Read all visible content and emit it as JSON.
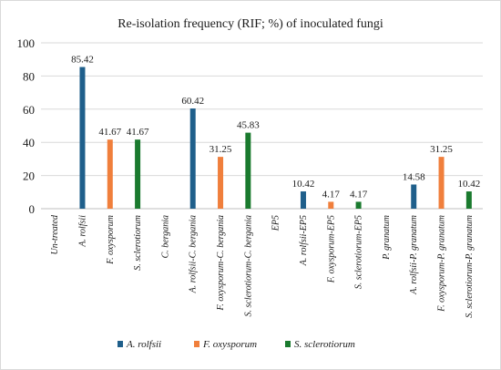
{
  "chart_data": {
    "type": "bar",
    "title": "Re-isolation frequency (RIF; %) of inoculated fungi",
    "xlabel": "",
    "ylabel": "",
    "ylim": [
      0,
      100
    ],
    "yticks": [
      0,
      20,
      40,
      60,
      80,
      100
    ],
    "grid": true,
    "legend_position": "bottom",
    "categories": [
      "Un-treated",
      "A. rolfsii",
      "F. oxysporum",
      "S. sclerotiorum",
      "C. bergania",
      "A. rolfsii-C. bergania",
      "F. oxysporum-C. bergania",
      "S. sclerotiorum-C. bergania",
      "EP5",
      "A. rolfsii-EP5",
      "F. oxysporum-EP5",
      "S. sclerotiorum-EP5",
      "P. granatum",
      "A. rolfsii-P. granatum",
      "F. oxysporum-P. granatum",
      "S. sclerotiorum-P. granatum"
    ],
    "series": [
      {
        "name": "A. rolfsii",
        "color": "#1f5f8b",
        "values": [
          null,
          85.42,
          null,
          null,
          null,
          60.42,
          null,
          null,
          null,
          10.42,
          null,
          null,
          null,
          14.58,
          null,
          null
        ],
        "labels": [
          "",
          "85.42",
          "",
          "",
          "",
          "60.42",
          "",
          "",
          "",
          "10.42",
          "",
          "",
          "",
          "14.58",
          "",
          ""
        ]
      },
      {
        "name": "F. oxysporum",
        "color": "#f07f3c",
        "values": [
          null,
          null,
          41.67,
          null,
          null,
          null,
          31.25,
          null,
          null,
          null,
          4.17,
          null,
          null,
          null,
          31.25,
          null
        ],
        "labels": [
          "",
          "",
          "41.67",
          "",
          "",
          "",
          "31.25",
          "",
          "",
          "",
          "4.17",
          "",
          "",
          "",
          "31.25",
          ""
        ]
      },
      {
        "name": "S. sclerotiorum",
        "color": "#1a7a2e",
        "values": [
          null,
          null,
          null,
          41.67,
          null,
          null,
          null,
          45.83,
          null,
          null,
          null,
          4.17,
          null,
          null,
          null,
          10.42
        ],
        "labels": [
          "",
          "",
          "",
          "41.67",
          "",
          "",
          "",
          "45.83",
          "",
          "",
          "",
          "4.17",
          "",
          "",
          "",
          "10.42"
        ]
      }
    ]
  }
}
